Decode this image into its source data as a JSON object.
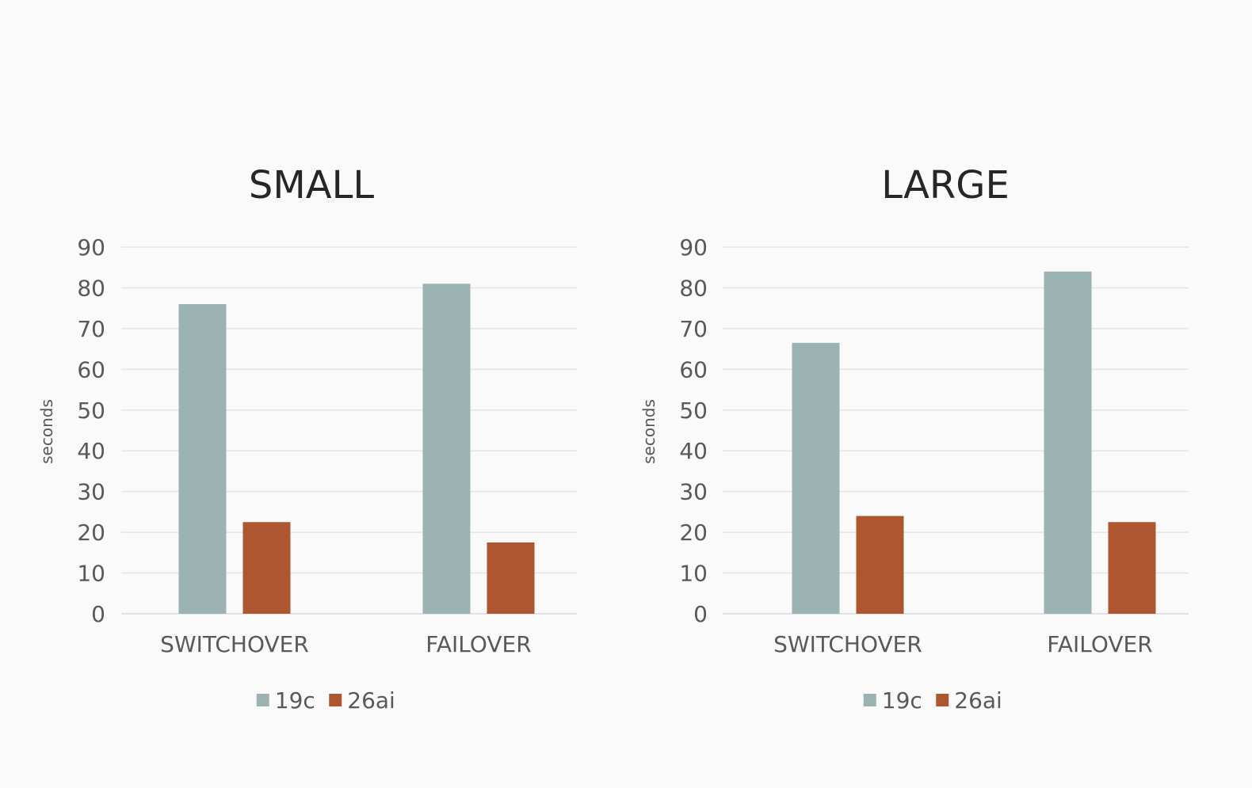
{
  "chart_data": [
    {
      "type": "bar",
      "title": "SMALL",
      "ylabel": "seconds",
      "xlabel": "",
      "ylim": [
        0,
        90
      ],
      "yticks": [
        0,
        10,
        20,
        30,
        40,
        50,
        60,
        70,
        80,
        90
      ],
      "grid": true,
      "legend": "bottom",
      "categories": [
        "SWITCHOVER",
        "FAILOVER"
      ],
      "series": [
        {
          "name": "19c",
          "color": "#9bb3b3",
          "values": [
            76,
            81
          ]
        },
        {
          "name": "26ai",
          "color": "#ae562f",
          "values": [
            22.5,
            17.5
          ]
        }
      ]
    },
    {
      "type": "bar",
      "title": "LARGE",
      "ylabel": "seconds",
      "xlabel": "",
      "ylim": [
        0,
        90
      ],
      "yticks": [
        0,
        10,
        20,
        30,
        40,
        50,
        60,
        70,
        80,
        90
      ],
      "grid": true,
      "legend": "bottom",
      "categories": [
        "SWITCHOVER",
        "FAILOVER"
      ],
      "series": [
        {
          "name": "19c",
          "color": "#9bb3b3",
          "values": [
            66.5,
            84
          ]
        },
        {
          "name": "26ai",
          "color": "#ae562f",
          "values": [
            24,
            22.5
          ]
        }
      ]
    }
  ]
}
